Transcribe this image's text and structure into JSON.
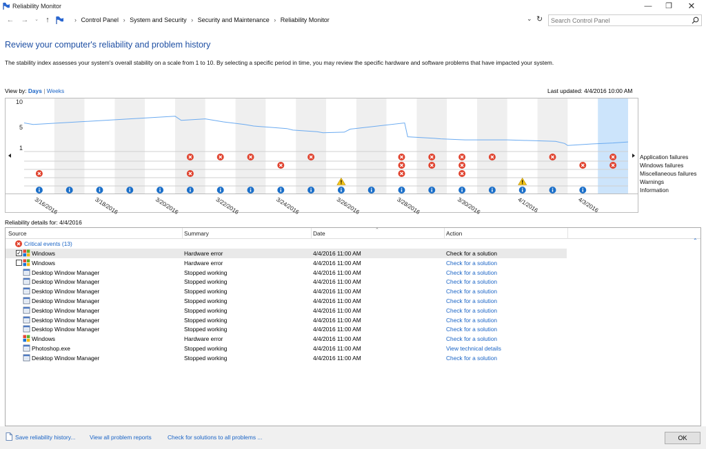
{
  "window": {
    "title": "Reliability Monitor"
  },
  "address": {
    "breadcrumb": [
      "Control Panel",
      "System and Security",
      "Security and Maintenance",
      "Reliability Monitor"
    ],
    "search_placeholder": "Search Control Panel"
  },
  "page": {
    "heading": "Review your computer's reliability and problem history",
    "description": "The stability index assesses your system's overall stability on a scale from 1 to 10. By selecting a specific period in time, you may review the specific hardware and software problems that have impacted your system.",
    "view_by_label": "View by:",
    "view_days": "Days",
    "view_sep": "|",
    "view_weeks": "Weeks",
    "last_updated": "Last updated: 4/4/2016 10:00 AM"
  },
  "chart_data": {
    "type": "line",
    "y_ticks": [
      "10",
      "5",
      "1"
    ],
    "ylim": [
      1,
      10
    ],
    "date_labels": [
      "3/16/2016",
      "3/18/2016",
      "3/20/2016",
      "3/22/2016",
      "3/24/2016",
      "3/26/2016",
      "3/28/2016",
      "3/30/2016",
      "4/1/2016",
      "4/3/2016"
    ],
    "days": 20,
    "selected_day": 19,
    "stability_index": [
      [
        0,
        5.9
      ],
      [
        0.3,
        5.6
      ],
      [
        5.0,
        7.2
      ],
      [
        5.2,
        6.4
      ],
      [
        6.0,
        6.7
      ],
      [
        6.6,
        6.1
      ],
      [
        7.3,
        5.6
      ],
      [
        7.6,
        5.3
      ],
      [
        8.7,
        4.8
      ],
      [
        8.9,
        4.5
      ],
      [
        9.7,
        4.2
      ],
      [
        9.9,
        4.0
      ],
      [
        10.6,
        4.1
      ],
      [
        10.8,
        4.7
      ],
      [
        12.6,
        5.9
      ],
      [
        12.7,
        3.2
      ],
      [
        13.6,
        2.9
      ],
      [
        13.8,
        2.8
      ],
      [
        14.6,
        2.6
      ],
      [
        14.7,
        2.6
      ],
      [
        16.0,
        2.6
      ],
      [
        17.6,
        2.3
      ],
      [
        17.9,
        1.9
      ],
      [
        18.0,
        1.5
      ],
      [
        18.8,
        1.8
      ],
      [
        19.5,
        2.0
      ],
      [
        20.0,
        2.2
      ]
    ],
    "rows": [
      "Application failures",
      "Windows failures",
      "Miscellaneous failures",
      "Warnings",
      "Information"
    ],
    "application_failures": [
      6,
      7,
      8,
      10,
      13,
      14,
      15,
      16,
      18,
      20
    ],
    "windows_failures": [
      9,
      13,
      14,
      15,
      19,
      20
    ],
    "miscellaneous_failures": [
      1,
      6,
      13,
      15
    ],
    "warnings": [
      11,
      17
    ],
    "information": [
      1,
      2,
      3,
      4,
      5,
      6,
      7,
      8,
      9,
      10,
      11,
      12,
      13,
      14,
      15,
      16,
      17,
      18,
      19
    ]
  },
  "details": {
    "label": "Reliability details for: 4/4/2016",
    "columns": [
      "Source",
      "Summary",
      "Date",
      "Action"
    ],
    "group_label": "Critical events (13)",
    "rows": [
      {
        "icon": "windows-flag-icon",
        "source": "Windows",
        "summary": "Hardware error",
        "date": "4/4/2016 11:00 AM",
        "action": "Check for a solution",
        "checkbox": true,
        "checked": true,
        "selected": true,
        "action_link": false
      },
      {
        "icon": "windows-flag-icon",
        "source": "Windows",
        "summary": "Hardware error",
        "date": "4/4/2016 11:00 AM",
        "action": "Check for a solution",
        "checkbox": true,
        "checked": false,
        "selected": false,
        "action_link": true
      },
      {
        "icon": "app-window-icon",
        "source": "Desktop Window Manager",
        "summary": "Stopped working",
        "date": "4/4/2016 11:00 AM",
        "action": "Check for a solution",
        "checkbox": false,
        "action_link": true
      },
      {
        "icon": "app-window-icon",
        "source": "Desktop Window Manager",
        "summary": "Stopped working",
        "date": "4/4/2016 11:00 AM",
        "action": "Check for a solution",
        "checkbox": false,
        "action_link": true
      },
      {
        "icon": "app-window-icon",
        "source": "Desktop Window Manager",
        "summary": "Stopped working",
        "date": "4/4/2016 11:00 AM",
        "action": "Check for a solution",
        "checkbox": false,
        "action_link": true
      },
      {
        "icon": "app-window-icon",
        "source": "Desktop Window Manager",
        "summary": "Stopped working",
        "date": "4/4/2016 11:00 AM",
        "action": "Check for a solution",
        "checkbox": false,
        "action_link": true
      },
      {
        "icon": "app-window-icon",
        "source": "Desktop Window Manager",
        "summary": "Stopped working",
        "date": "4/4/2016 11:00 AM",
        "action": "Check for a solution",
        "checkbox": false,
        "action_link": true
      },
      {
        "icon": "app-window-icon",
        "source": "Desktop Window Manager",
        "summary": "Stopped working",
        "date": "4/4/2016 11:00 AM",
        "action": "Check for a solution",
        "checkbox": false,
        "action_link": true
      },
      {
        "icon": "app-window-icon",
        "source": "Desktop Window Manager",
        "summary": "Stopped working",
        "date": "4/4/2016 11:00 AM",
        "action": "Check for a solution",
        "checkbox": false,
        "action_link": true
      },
      {
        "icon": "windows-flag-icon",
        "source": "Windows",
        "summary": "Hardware error",
        "date": "4/4/2016 11:00 AM",
        "action": "Check for a solution",
        "checkbox": false,
        "action_link": true
      },
      {
        "icon": "app-window-icon",
        "source": "Photoshop.exe",
        "summary": "Stopped working",
        "date": "4/4/2016 11:00 AM",
        "action": "View  technical details",
        "checkbox": false,
        "action_link": true
      },
      {
        "icon": "app-window-icon",
        "source": "Desktop Window Manager",
        "summary": "Stopped working",
        "date": "4/4/2016 11:00 AM",
        "action": "Check for a solution",
        "checkbox": false,
        "action_link": true
      }
    ]
  },
  "footer": {
    "save_history": "Save reliability history...",
    "view_all": "View all problem reports",
    "check_all": "Check for solutions to all problems ...",
    "ok": "OK"
  },
  "colors": {
    "heading": "#1e4fa3",
    "link": "#1a64c6",
    "error": "#e0432f",
    "warning": "#f5c518",
    "info": "#1b6fc9",
    "stability_line": "#6aaaf0",
    "selected_column": "#cce4fb"
  }
}
